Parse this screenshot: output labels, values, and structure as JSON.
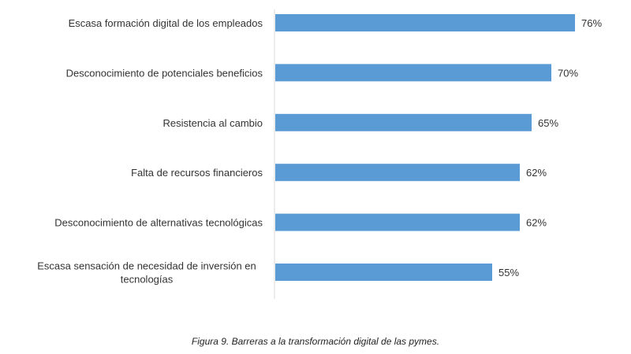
{
  "chart_data": {
    "type": "bar",
    "orientation": "horizontal",
    "categories": [
      "Escasa formación digital de los empleados",
      "Desconocimiento de potenciales beneficios",
      "Resistencia al cambio",
      "Falta de recursos financieros",
      "Desconocimiento de alternativas tecnológicas",
      "Escasa sensación de necesidad de inversión en tecnologías"
    ],
    "category_lines": [
      [
        "Escasa formación digital de los empleados"
      ],
      [
        "Desconocimiento de potenciales beneficios"
      ],
      [
        "Resistencia al cambio"
      ],
      [
        "Falta de recursos financieros"
      ],
      [
        "Desconocimiento de alternativas tecnológicas"
      ],
      [
        "Escasa sensación de necesidad de inversión en",
        "tecnologías"
      ]
    ],
    "values": [
      76,
      70,
      65,
      62,
      62,
      55
    ],
    "value_labels": [
      "76%",
      "70%",
      "65%",
      "62%",
      "62%",
      "55%"
    ],
    "unit": "%",
    "xlim": [
      0,
      80
    ],
    "grid": false,
    "legend": "none",
    "bar_color": "#5b9bd5",
    "axis_color": "#d9d9d9",
    "title": "",
    "xlabel": "",
    "ylabel": ""
  },
  "caption": "Figura 9. Barreras a la transformación digital de las pymes."
}
